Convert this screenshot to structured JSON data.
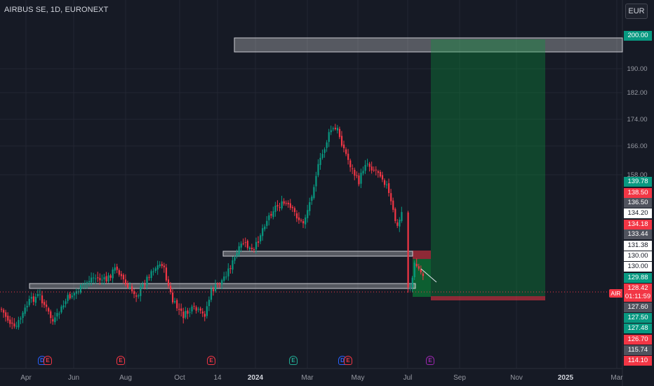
{
  "header": {
    "symbol_title": "AIRBUS SE, 1D, EURONEXT",
    "currency_button": "EUR"
  },
  "chart_data": {
    "type": "candlestick",
    "symbol": "AIR",
    "y_ticks": [
      190.0,
      182.0,
      174.0,
      166.0,
      158.0
    ],
    "x_ticks": [
      {
        "label": "Apr",
        "bold": false
      },
      {
        "label": "Jun",
        "bold": false
      },
      {
        "label": "Aug",
        "bold": false
      },
      {
        "label": "Oct",
        "bold": false
      },
      {
        "label": "14",
        "bold": false
      },
      {
        "label": "2024",
        "bold": true
      },
      {
        "label": "Mar",
        "bold": false
      },
      {
        "label": "May",
        "bold": false
      },
      {
        "label": "Jul",
        "bold": false
      },
      {
        "label": "Sep",
        "bold": false
      },
      {
        "label": "Nov",
        "bold": false
      },
      {
        "label": "2025",
        "bold": true
      },
      {
        "label": "Mar",
        "bold": false
      }
    ],
    "price_badges": [
      {
        "value": "200.00",
        "bg": "#089981",
        "fg": "#ffffff"
      },
      {
        "value": "139.78",
        "bg": "#089981",
        "fg": "#ffffff"
      },
      {
        "value": "138.50",
        "bg": "#f23645",
        "fg": "#ffffff"
      },
      {
        "value": "136.50",
        "bg": "#50535e",
        "fg": "#ffffff"
      },
      {
        "value": "134.20",
        "bg": "#ffffff",
        "fg": "#131722"
      },
      {
        "value": "134.18",
        "bg": "#f23645",
        "fg": "#ffffff"
      },
      {
        "value": "133.44",
        "bg": "#50535e",
        "fg": "#ffffff"
      },
      {
        "value": "131.38",
        "bg": "#ffffff",
        "fg": "#131722"
      },
      {
        "value": "130.00",
        "bg": "#ffffff",
        "fg": "#131722"
      },
      {
        "value": "130.00",
        "bg": "#ffffff",
        "fg": "#131722"
      },
      {
        "value": "129.88",
        "bg": "#089981",
        "fg": "#ffffff"
      },
      {
        "value": "128.42",
        "bg": "#f23645",
        "fg": "#ffffff"
      },
      {
        "value": "01:11:59",
        "bg": "#f23645",
        "fg": "#ffffff"
      },
      {
        "value": "127.60",
        "bg": "#50535e",
        "fg": "#ffffff"
      },
      {
        "value": "127.50",
        "bg": "#089981",
        "fg": "#ffffff"
      },
      {
        "value": "127.48",
        "bg": "#089981",
        "fg": "#ffffff"
      },
      {
        "value": "126.70",
        "bg": "#f23645",
        "fg": "#ffffff"
      },
      {
        "value": "115.74",
        "bg": "#50535e",
        "fg": "#ffffff"
      },
      {
        "value": "114.10",
        "bg": "#f23645",
        "fg": "#ffffff"
      }
    ],
    "events": [
      {
        "letter": "D",
        "color": "#2962ff"
      },
      {
        "letter": "E",
        "color": "#f23645"
      },
      {
        "letter": "E",
        "color": "#f23645"
      },
      {
        "letter": "E",
        "color": "#f23645"
      },
      {
        "letter": "E",
        "color": "#22ab94"
      },
      {
        "letter": "D",
        "color": "#2962ff"
      },
      {
        "letter": "E",
        "color": "#f23645"
      },
      {
        "letter": "E",
        "color": "#9c27b0"
      }
    ],
    "colors": {
      "up": "#089981",
      "down": "#f23645",
      "background": "#161a25",
      "grid": "#232632"
    },
    "zones": [
      {
        "kind": "resistance-box",
        "price_range": [
          196,
          200
        ]
      },
      {
        "kind": "support-box",
        "price_range": [
          130,
          131.38
        ]
      },
      {
        "kind": "support-box",
        "price_range": [
          127.5,
          128.3
        ]
      },
      {
        "kind": "long-position-target",
        "price_range": [
          129.88,
          200
        ]
      },
      {
        "kind": "long-position-stop",
        "price_range": [
          127.48,
          127.9
        ]
      }
    ],
    "last_price_label": "AIR"
  }
}
